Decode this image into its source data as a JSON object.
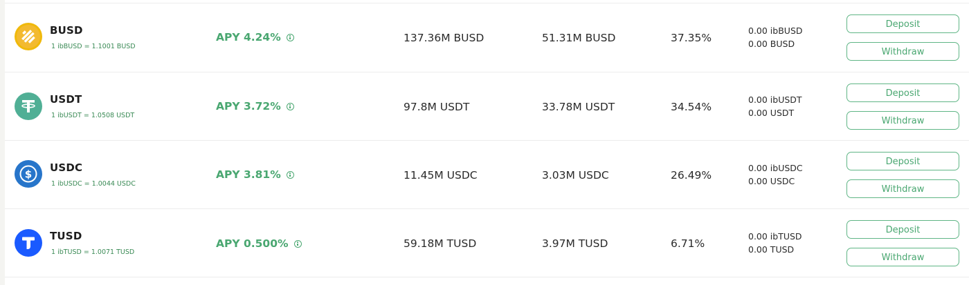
{
  "colors": {
    "accent": "#4aa771",
    "busd": "#f0b90b",
    "usdt": "#50af95",
    "usdc": "#2775ca",
    "tusd": "#1a5aff"
  },
  "rows": [
    {
      "symbol": "BUSD",
      "icon": "busd-icon",
      "rate": "1 ibBUSD = 1.1001 BUSD",
      "apy": "APY 4.24%",
      "total_supply": "137.36M BUSD",
      "total_borrowed": "51.31M BUSD",
      "utilization": "37.35%",
      "balance_ib": "0.00 ibBUSD",
      "balance_token": "0.00 BUSD",
      "deposit_label": "Deposit",
      "withdraw_label": "Withdraw"
    },
    {
      "symbol": "USDT",
      "icon": "usdt-icon",
      "rate": "1 ibUSDT = 1.0508 USDT",
      "apy": "APY 3.72%",
      "total_supply": "97.8M USDT",
      "total_borrowed": "33.78M USDT",
      "utilization": "34.54%",
      "balance_ib": "0.00 ibUSDT",
      "balance_token": "0.00 USDT",
      "deposit_label": "Deposit",
      "withdraw_label": "Withdraw"
    },
    {
      "symbol": "USDC",
      "icon": "usdc-icon",
      "rate": "1 ibUSDC = 1.0044 USDC",
      "apy": "APY 3.81%",
      "total_supply": "11.45M USDC",
      "total_borrowed": "3.03M USDC",
      "utilization": "26.49%",
      "balance_ib": "0.00 ibUSDC",
      "balance_token": "0.00 USDC",
      "deposit_label": "Deposit",
      "withdraw_label": "Withdraw"
    },
    {
      "symbol": "TUSD",
      "icon": "tusd-icon",
      "rate": "1 ibTUSD = 1.0071 TUSD",
      "apy": "APY 0.500%",
      "total_supply": "59.18M TUSD",
      "total_borrowed": "3.97M TUSD",
      "utilization": "6.71%",
      "balance_ib": "0.00 ibTUSD",
      "balance_token": "0.00 TUSD",
      "deposit_label": "Deposit",
      "withdraw_label": "Withdraw"
    }
  ]
}
